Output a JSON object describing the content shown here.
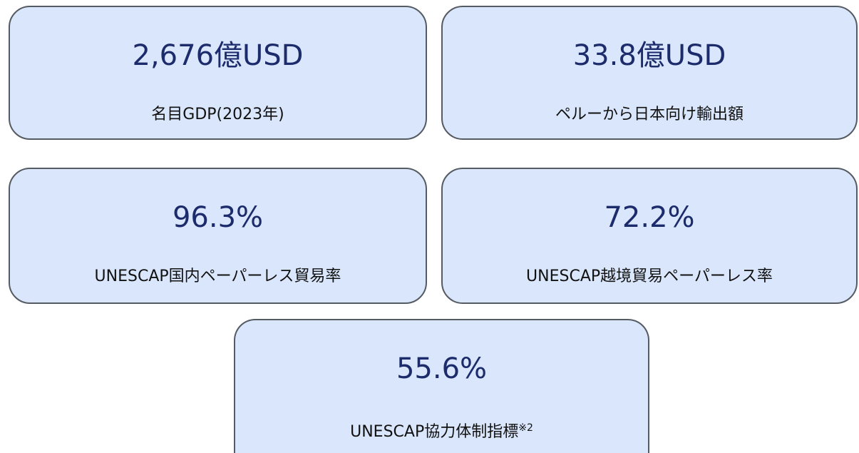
{
  "cards": [
    {
      "value": "2,676億USD",
      "label": "名目GDP(2023年)"
    },
    {
      "value": "33.8億USD",
      "label": "ペルーから日本向け輸出額"
    },
    {
      "value": "96.3%",
      "label": "UNESCAP国内ペーパーレス貿易率"
    },
    {
      "value": "72.2%",
      "label": "UNESCAP越境貿易ペーパーレス率"
    },
    {
      "value": "55.6%",
      "label": "UNESCAP協力体制指標",
      "note": "※2"
    }
  ]
}
